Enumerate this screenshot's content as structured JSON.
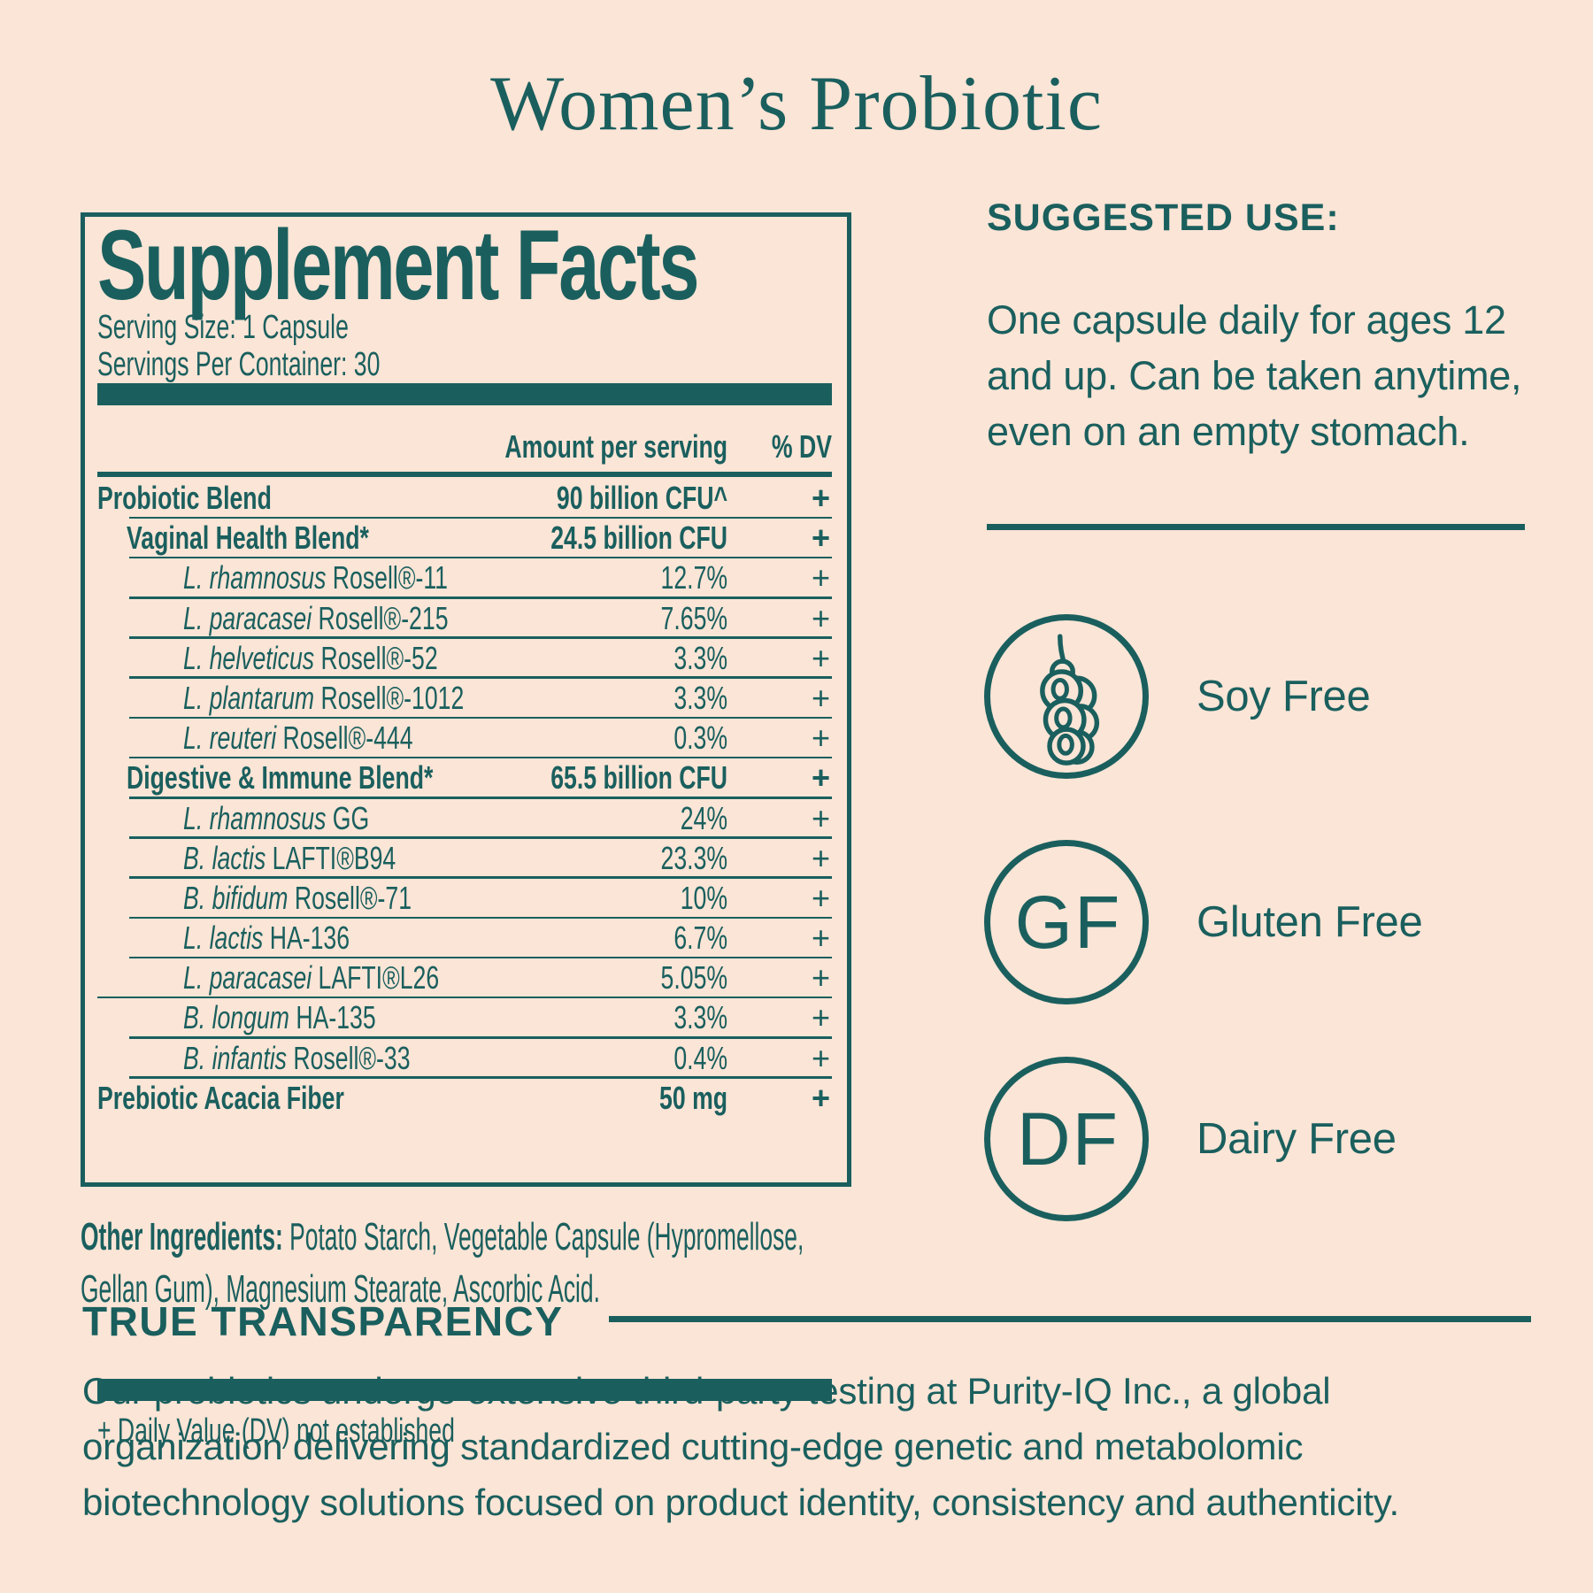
{
  "colors": {
    "background": "#FBE5D6",
    "teal": "#1A5F5E"
  },
  "page": {
    "title": "Women’s Probiotic"
  },
  "panel": {
    "title": "Supplement Facts",
    "serving_size": "Serving Size: 1 Capsule",
    "servings_per_container": "Servings Per Container: 30",
    "col_amount": "Amount per serving",
    "col_dv": "% DV",
    "rows": [
      {
        "species": "",
        "text": "Probiotic Blend",
        "amount": "90 billion CFU^",
        "dv": "+",
        "level": 0,
        "bold": true,
        "rule": "indent"
      },
      {
        "species": "",
        "text": "Vaginal Health Blend*",
        "amount": "24.5 billion CFU",
        "dv": "+",
        "level": 1,
        "bold": true,
        "rule": "indent"
      },
      {
        "species": "L. rhamnosus",
        "text": " Rosell®-11",
        "amount": "12.7%",
        "dv": "+",
        "level": 2,
        "bold": false,
        "rule": "indent"
      },
      {
        "species": "L. paracasei",
        "text": " Rosell®-215",
        "amount": "7.65%",
        "dv": "+",
        "level": 2,
        "bold": false,
        "rule": "indent"
      },
      {
        "species": "L. helveticus",
        "text": " Rosell®-52",
        "amount": "3.3%",
        "dv": "+",
        "level": 2,
        "bold": false,
        "rule": "indent"
      },
      {
        "species": "L. plantarum",
        "text": " Rosell®-1012",
        "amount": "3.3%",
        "dv": "+",
        "level": 2,
        "bold": false,
        "rule": "indent"
      },
      {
        "species": "L. reuteri",
        "text": " Rosell®-444",
        "amount": "0.3%",
        "dv": "+",
        "level": 2,
        "bold": false,
        "rule": "indent"
      },
      {
        "species": "",
        "text": "Digestive & Immune Blend*",
        "amount": "65.5 billion CFU",
        "dv": "+",
        "level": 1,
        "bold": true,
        "rule": "indent"
      },
      {
        "species": "L. rhamnosus",
        "text": " GG",
        "amount": "24%",
        "dv": "+",
        "level": 2,
        "bold": false,
        "rule": "indent"
      },
      {
        "species": "B. lactis",
        "text": " LAFTI®B94",
        "amount": "23.3%",
        "dv": "+",
        "level": 2,
        "bold": false,
        "rule": "indent"
      },
      {
        "species": "B. bifidum",
        "text": " Rosell®-71",
        "amount": "10%",
        "dv": "+",
        "level": 2,
        "bold": false,
        "rule": "indent"
      },
      {
        "species": "L. lactis",
        "text": " HA-136",
        "amount": "6.7%",
        "dv": "+",
        "level": 2,
        "bold": false,
        "rule": "indent"
      },
      {
        "species": "L. paracasei",
        "text": " LAFTI®L26",
        "amount": "5.05%",
        "dv": "+",
        "level": 2,
        "bold": false,
        "rule": "wide"
      },
      {
        "species": "B. longum",
        "text": " HA-135",
        "amount": "3.3%",
        "dv": "+",
        "level": 2,
        "bold": false,
        "rule": "indent"
      },
      {
        "species": "B. infantis",
        "text": " Rosell®-33",
        "amount": "0.4%",
        "dv": "+",
        "level": 2,
        "bold": false,
        "rule": "indent"
      },
      {
        "species": "",
        "text": "Prebiotic Acacia Fiber",
        "amount": "50 mg",
        "dv": "+",
        "level": 0,
        "bold": true,
        "rule": "none"
      }
    ],
    "footnote": "+ Daily Value (DV) not established"
  },
  "other_ingredients": {
    "label": "Other Ingredients:",
    "line1": " Potato Starch, Vegetable Capsule (Hypromellose,",
    "line2": "Gellan Gum), Magnesium Stearate, Ascorbic Acid."
  },
  "suggested_use": {
    "heading": "SUGGESTED USE:",
    "body_lines": [
      "One capsule daily for ages 12",
      "and up. Can be taken anytime,",
      "even on an empty stomach."
    ]
  },
  "badges": [
    {
      "id": "soy",
      "icon": "soybean-pod-icon",
      "monogram": "",
      "label": "Soy Free"
    },
    {
      "id": "gluten",
      "icon": "gf-monogram-icon",
      "monogram": "GF",
      "label": "Gluten Free"
    },
    {
      "id": "dairy",
      "icon": "df-monogram-icon",
      "monogram": "DF",
      "label": "Dairy Free"
    }
  ],
  "transparency": {
    "heading": "TRUE TRANSPARENCY",
    "body_lines": [
      "Our probiotics undergo extensive third-party testing at Purity-IQ Inc., a global",
      "organization delivering standardized cutting-edge genetic and metabolomic",
      "biotechnology solutions focused on product identity, consistency and authenticity."
    ]
  }
}
